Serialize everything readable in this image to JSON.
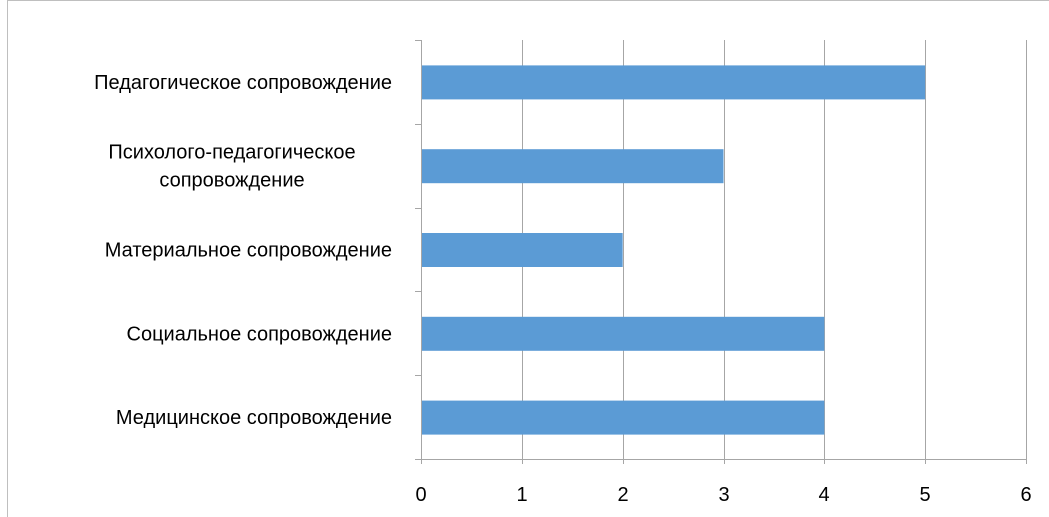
{
  "chart_data": {
    "type": "bar",
    "orientation": "horizontal",
    "categories": [
      [
        "Педагогическое сопровождение"
      ],
      [
        "Психолого-педагогическое",
        "сопровождение"
      ],
      [
        "Материальное сопровождение"
      ],
      [
        "Социальное сопровождение"
      ],
      [
        "Медицинское сопровождение"
      ]
    ],
    "values": [
      5,
      3,
      2,
      4,
      4
    ],
    "xlim": [
      0,
      6
    ],
    "xticks": [
      "0",
      "1",
      "2",
      "3",
      "4",
      "5",
      "6"
    ],
    "grid": "vertical",
    "legend": "none",
    "bar_color": "#5b9bd5",
    "grid_color": "#a6a6a6"
  }
}
